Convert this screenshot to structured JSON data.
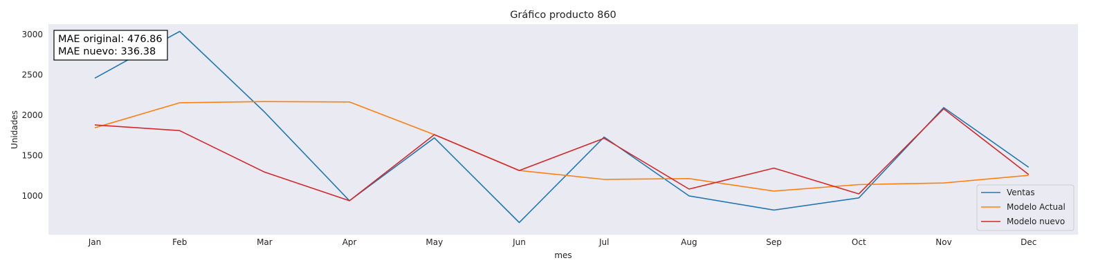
{
  "chart_data": {
    "type": "line",
    "title": "Gráfico producto 860",
    "xlabel": "mes",
    "ylabel": "Unidades",
    "categories": [
      "Jan",
      "Feb",
      "Mar",
      "Apr",
      "May",
      "Jun",
      "Jul",
      "Aug",
      "Sep",
      "Oct",
      "Nov",
      "Dec"
    ],
    "yticks": [
      1000,
      1500,
      2000,
      2500,
      3000
    ],
    "ylim": [
      520,
      3130
    ],
    "grid": false,
    "legend_position": "bottom-right",
    "background_color": "#eaeaf2",
    "series": [
      {
        "name": "Ventas",
        "color": "#1f77b4",
        "values": [
          2460,
          3040,
          2040,
          940,
          1720,
          670,
          1730,
          1000,
          825,
          975,
          2095,
          1355
        ]
      },
      {
        "name": "Modelo Actual",
        "color": "#ff7f0e",
        "values": [
          1845,
          2155,
          2170,
          2165,
          1760,
          1315,
          1205,
          1215,
          1060,
          1140,
          1160,
          1255
        ]
      },
      {
        "name": "Modelo nuevo",
        "color": "#d62728",
        "values": [
          1880,
          1810,
          1295,
          940,
          1760,
          1315,
          1715,
          1085,
          1345,
          1025,
          2080,
          1265
        ]
      }
    ],
    "annotations": [
      "MAE original: 476.86",
      "MAE nuevo: 336.38"
    ]
  }
}
